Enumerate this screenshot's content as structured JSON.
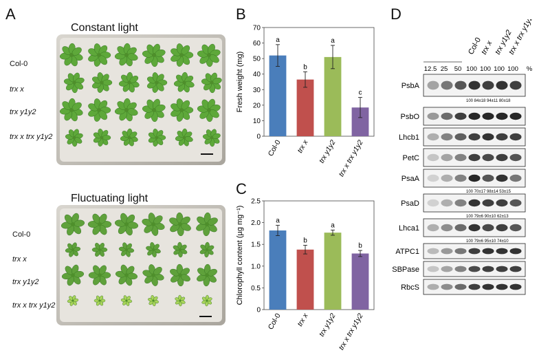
{
  "panels": {
    "A": {
      "letter": "A",
      "constant_title": "Constant light",
      "fluctuating_title": "Fluctuating light",
      "genotypes": [
        "Col-0",
        "trx x",
        "trx y1y2",
        "trx x trx y1y2"
      ]
    },
    "B": {
      "letter": "B"
    },
    "C": {
      "letter": "C"
    },
    "D": {
      "letter": "D",
      "column_labels": [
        "Col-0",
        "trx x",
        "trx y1y2",
        "trx x trx y1y2"
      ],
      "dilution_labels": [
        "12.5",
        "25",
        "50",
        "100",
        "100",
        "100",
        "100",
        "%"
      ],
      "proteins": [
        {
          "name": "PsbA",
          "quant": "100   84±18 94±11 80±18"
        },
        {
          "name": "PsbO",
          "quant": ""
        },
        {
          "name": "Lhcb1",
          "quant": ""
        },
        {
          "name": "PetC",
          "quant": ""
        },
        {
          "name": "PsaA",
          "quant": "100   70±17 98±14 53±15"
        },
        {
          "name": "PsaD",
          "quant": "100   79±6 90±10 62±13"
        },
        {
          "name": "Lhca1",
          "quant": "100   79±6 95±10 74±10"
        },
        {
          "name": "ATPC1",
          "quant": ""
        },
        {
          "name": "SBPase",
          "quant": ""
        },
        {
          "name": "RbcS",
          "quant": ""
        }
      ]
    }
  },
  "chart_data": [
    {
      "type": "bar",
      "title": "",
      "ylabel": "Fresh weight (mg)",
      "xlabel": "",
      "categories": [
        "Col-0",
        "trx x",
        "trx y1y2",
        "trx x trx y1y2"
      ],
      "values": [
        52,
        36.5,
        51,
        18.5
      ],
      "errors": [
        7,
        5,
        7.5,
        6.5
      ],
      "letters": [
        "a",
        "b",
        "a",
        "c"
      ],
      "colors": [
        "#4a7ebb",
        "#c0504d",
        "#9bbb59",
        "#8064a2"
      ],
      "ylim": [
        0,
        70
      ],
      "yticks": [
        "0",
        "10",
        "20",
        "30",
        "40",
        "50",
        "60",
        "70"
      ]
    },
    {
      "type": "bar",
      "title": "",
      "ylabel": "Chlorophyll content (µg mg⁻¹)",
      "xlabel": "",
      "categories": [
        "Col-0",
        "trx x",
        "trx y1y2",
        "trx x trx y1y2"
      ],
      "values": [
        1.82,
        1.38,
        1.77,
        1.29
      ],
      "errors": [
        0.12,
        0.1,
        0.06,
        0.07
      ],
      "letters": [
        "a",
        "b",
        "a",
        "b"
      ],
      "colors": [
        "#4a7ebb",
        "#c0504d",
        "#9bbb59",
        "#8064a2"
      ],
      "ylim": [
        0,
        2.5
      ],
      "yticks": [
        "0",
        "0.5",
        "1.0",
        "1.5",
        "2.0",
        "2.5"
      ]
    }
  ]
}
